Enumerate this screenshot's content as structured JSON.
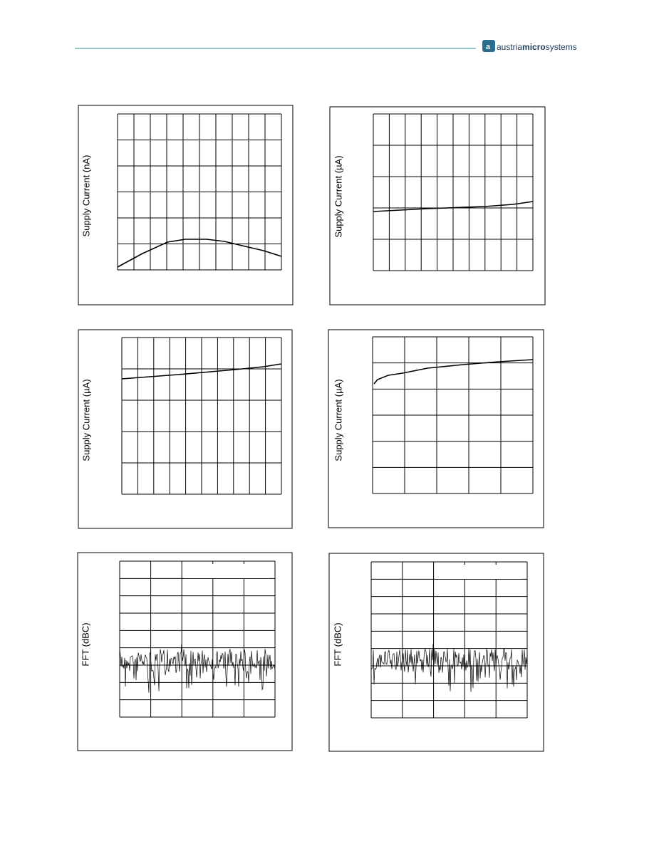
{
  "header": {
    "logo": {
      "brand_prefix": "austria",
      "brand_highlight": "micro",
      "brand_suffix": "systems"
    }
  },
  "figures": [
    {
      "y_label": "Supply Current (nA)"
    },
    {
      "y_label": "Supply Current (µA)"
    },
    {
      "y_label": "Supply Current (µA)"
    },
    {
      "y_label": "Supply Current (µA)"
    },
    {
      "y_label": "FFT (dBC)"
    },
    {
      "y_label": "FFT (dBC)"
    }
  ]
}
